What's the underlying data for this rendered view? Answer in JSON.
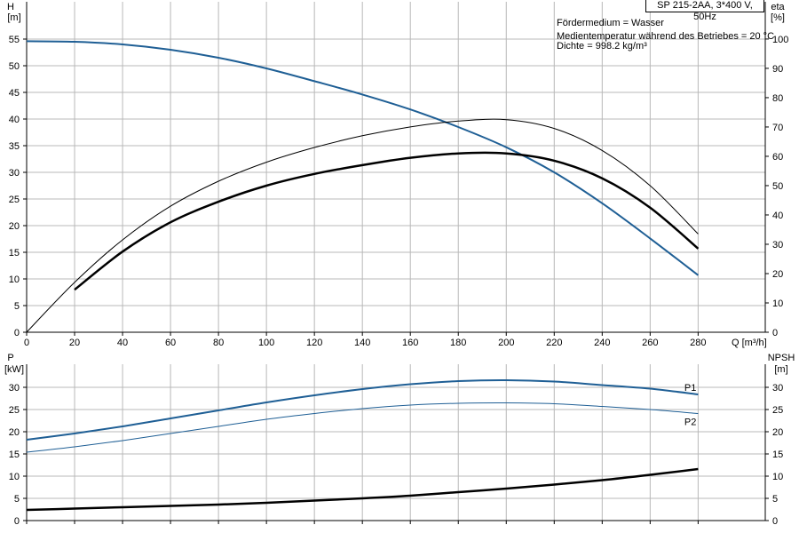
{
  "header": {
    "pump": "SP 215-2AA, 3*400 V, 50Hz",
    "medium": "Fördermedium = Wasser",
    "temperature": "Medientemperatur während des Betriebes = 20 °C",
    "density": "Dichte = 998.2 kg/m³"
  },
  "colors": {
    "blue": "#1f5f95",
    "black": "#000000"
  },
  "chart_data": [
    {
      "type": "line",
      "x_label": "Q [m³/h]",
      "y_left_label": [
        "H",
        "[m]"
      ],
      "y_right_label": [
        "eta",
        "[%]"
      ],
      "x_ticks": [
        0,
        20,
        40,
        60,
        80,
        100,
        120,
        140,
        160,
        180,
        200,
        220,
        240,
        260,
        280
      ],
      "y_left_ticks": [
        0,
        5,
        10,
        15,
        20,
        25,
        30,
        35,
        40,
        45,
        50,
        55
      ],
      "y_right_ticks": [
        0,
        10,
        20,
        30,
        40,
        50,
        60,
        70,
        80,
        90,
        100
      ],
      "xlim": [
        0,
        308
      ],
      "ylim_left": [
        0,
        62
      ],
      "ylim_right": [
        0,
        112.7
      ],
      "grid": true,
      "series": [
        {
          "axis": "left",
          "color": "#1f5f95",
          "width": 2,
          "x": [
            0,
            20,
            40,
            60,
            80,
            100,
            120,
            140,
            160,
            180,
            200,
            220,
            240,
            260,
            280
          ],
          "y": [
            54.6,
            54.5,
            54.0,
            53.0,
            51.5,
            49.5,
            47.1,
            44.6,
            41.8,
            38.5,
            34.7,
            30.0,
            24.2,
            17.6,
            10.7
          ]
        },
        {
          "axis": "right",
          "color": "#000000",
          "width": 1,
          "x": [
            0,
            20,
            40,
            60,
            80,
            100,
            120,
            140,
            160,
            180,
            200,
            220,
            240,
            260,
            280
          ],
          "y": [
            0,
            17.0,
            31.5,
            43.0,
            51.5,
            58.0,
            63.0,
            67.0,
            70.0,
            72.0,
            72.5,
            69.5,
            62.0,
            50.0,
            33.5
          ]
        },
        {
          "axis": "right",
          "color": "#000000",
          "width": 2.5,
          "x": [
            20,
            40,
            60,
            80,
            100,
            120,
            140,
            160,
            180,
            200,
            220,
            240,
            260,
            280
          ],
          "y": [
            14.5,
            27.5,
            37.5,
            44.5,
            50.0,
            54.0,
            57.0,
            59.5,
            61.0,
            61.0,
            58.5,
            52.5,
            42.5,
            28.5
          ]
        }
      ]
    },
    {
      "type": "line",
      "y_left_label": [
        "P",
        "[kW]"
      ],
      "y_right_label": [
        "NPSH",
        "[m]"
      ],
      "x_ticks": [
        0,
        20,
        40,
        60,
        80,
        100,
        120,
        140,
        160,
        180,
        200,
        220,
        240,
        260,
        280
      ],
      "y_left_ticks": [
        0,
        5,
        10,
        15,
        20,
        25,
        30
      ],
      "y_right_ticks": [
        0,
        5,
        10,
        15,
        20,
        25,
        30
      ],
      "xlim": [
        0,
        308
      ],
      "ylim": [
        0,
        35.2
      ],
      "grid": true,
      "series": [
        {
          "name": "P1",
          "color": "#1f5f95",
          "width": 2,
          "x": [
            0,
            20,
            40,
            60,
            80,
            100,
            120,
            140,
            160,
            180,
            200,
            220,
            240,
            260,
            280
          ],
          "y": [
            18.2,
            19.6,
            21.2,
            23.0,
            24.8,
            26.6,
            28.2,
            29.6,
            30.7,
            31.4,
            31.6,
            31.3,
            30.5,
            29.7,
            28.4
          ]
        },
        {
          "name": "P2",
          "color": "#1f5f95",
          "width": 1,
          "x": [
            0,
            20,
            40,
            60,
            80,
            100,
            120,
            140,
            160,
            180,
            200,
            220,
            240,
            260,
            280
          ],
          "y": [
            15.4,
            16.6,
            18.0,
            19.6,
            21.2,
            22.8,
            24.1,
            25.2,
            26.0,
            26.4,
            26.5,
            26.3,
            25.7,
            25.0,
            24.1
          ]
        },
        {
          "color": "#000000",
          "width": 2.5,
          "x": [
            0,
            20,
            40,
            60,
            80,
            100,
            120,
            140,
            160,
            180,
            200,
            220,
            240,
            260,
            280
          ],
          "y": [
            2.4,
            2.7,
            3.0,
            3.3,
            3.6,
            4.0,
            4.5,
            5.0,
            5.6,
            6.4,
            7.2,
            8.1,
            9.1,
            10.3,
            11.6
          ]
        }
      ]
    }
  ]
}
